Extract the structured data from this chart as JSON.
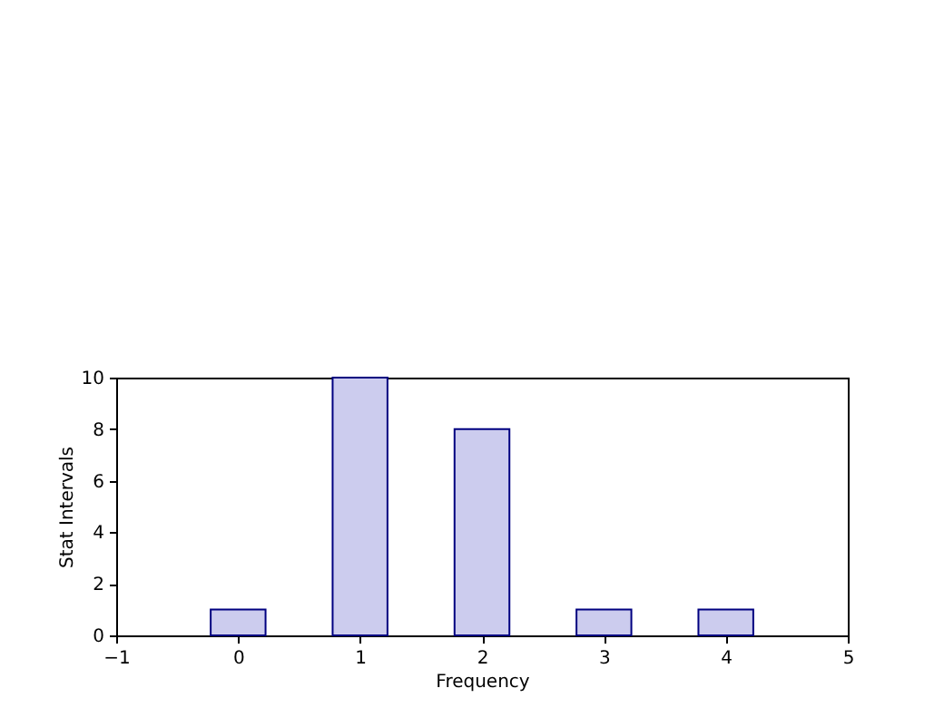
{
  "chart_data": {
    "type": "bar",
    "xlabel": "Frequency",
    "ylabel": "Stat Intervals",
    "x": [
      0,
      1,
      2,
      3,
      4
    ],
    "series": [
      {
        "color": "#ccccee",
        "values": [
          1,
          10,
          8,
          1,
          1
        ]
      }
    ],
    "xlim": [
      -1,
      5
    ],
    "xticks": [
      {
        "value": -1,
        "label": "−1"
      },
      0,
      1,
      2,
      3,
      4,
      5
    ],
    "ylim": [
      0,
      10
    ],
    "yticks": [
      0,
      2,
      4,
      6,
      8,
      10
    ],
    "grid": false
  }
}
